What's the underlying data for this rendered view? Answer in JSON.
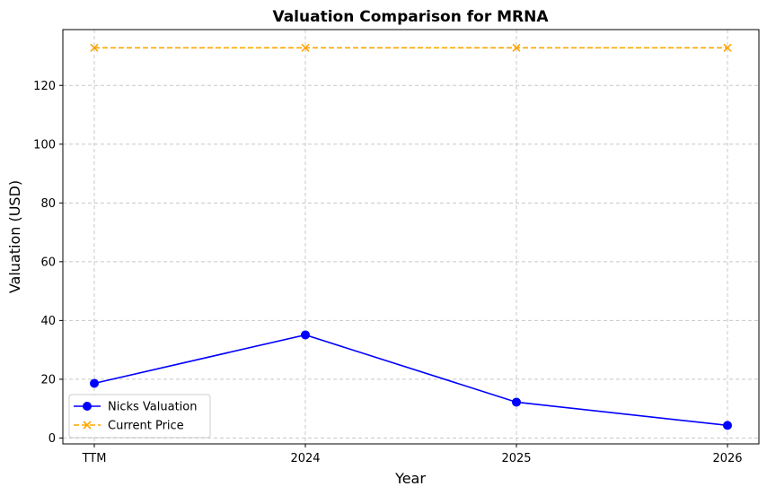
{
  "chart_data": {
    "type": "line",
    "title": "Valuation Comparison for MRNA",
    "xlabel": "Year",
    "ylabel": "Valuation (USD)",
    "categories": [
      "TTM",
      "2024",
      "2025",
      "2026"
    ],
    "ylim": [
      -2,
      139
    ],
    "yticks": [
      0,
      20,
      40,
      60,
      80,
      100,
      120
    ],
    "grid": true,
    "legend_position": "lower-left",
    "series": [
      {
        "name": "Nicks Valuation",
        "values": [
          18.6,
          35.1,
          12.2,
          4.3
        ],
        "color": "#0000ff",
        "line_style": "solid",
        "marker": "circle"
      },
      {
        "name": "Current Price",
        "values": [
          132.8,
          132.8,
          132.8,
          132.8
        ],
        "color": "#ffa500",
        "line_style": "dashed",
        "marker": "x"
      }
    ]
  }
}
